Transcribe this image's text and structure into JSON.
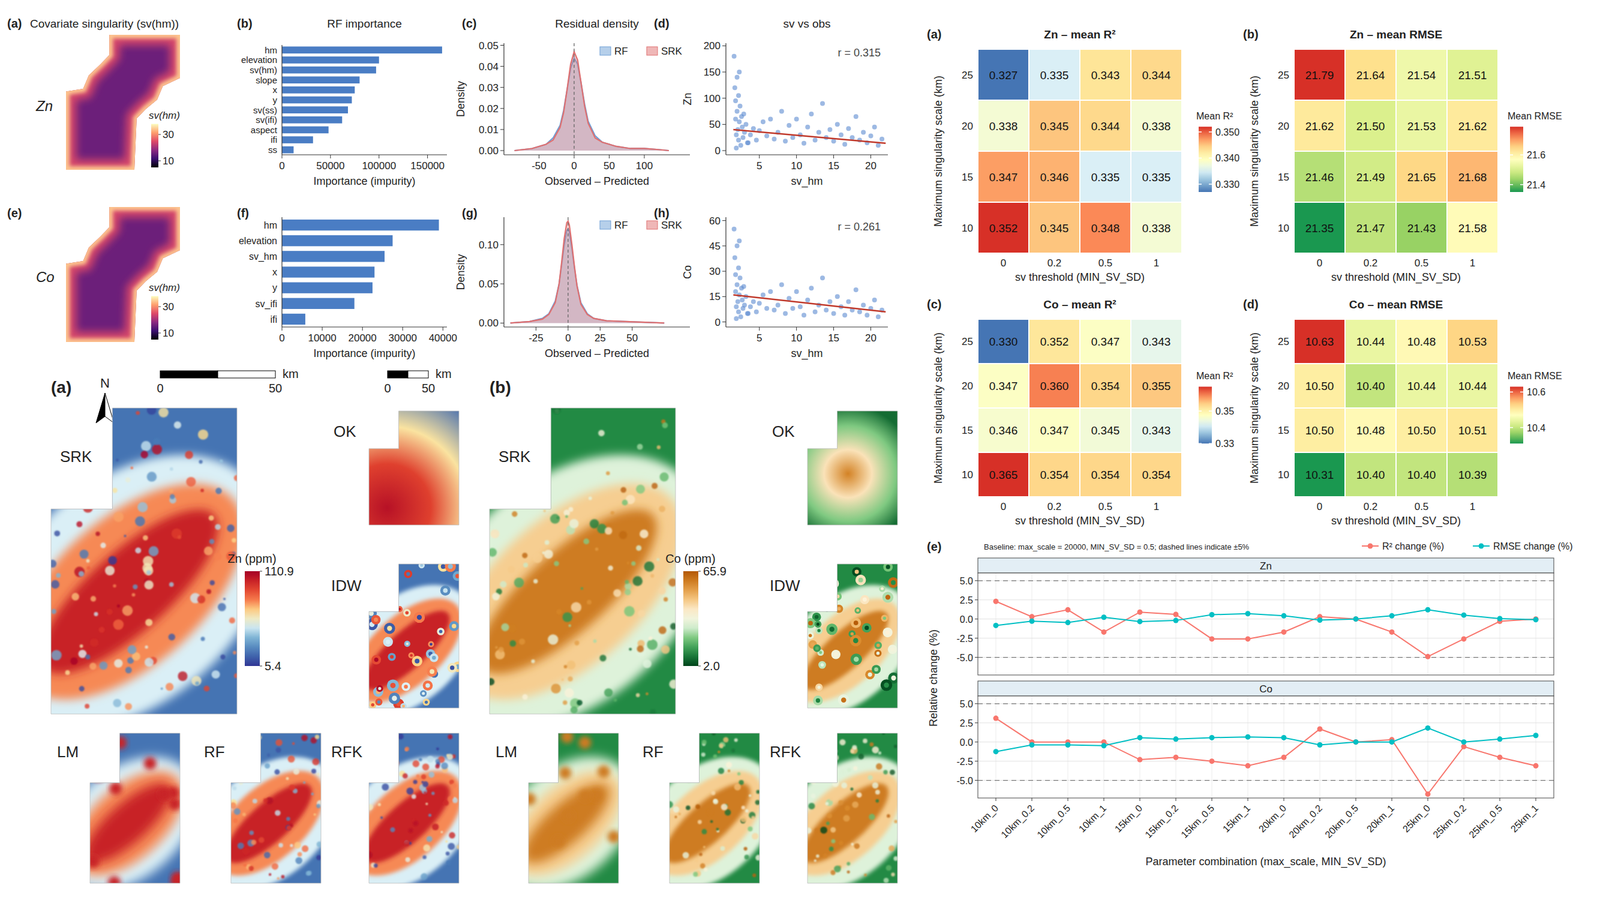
{
  "chart_data": [
    {
      "type": "map",
      "panel": "(a)",
      "title": "Covariate singularity (sv(hm))",
      "row_label": "Zn",
      "colorbar": {
        "title": "sv(hm)",
        "range": [
          5,
          38
        ],
        "ticks": [
          10,
          30
        ]
      }
    },
    {
      "type": "bar",
      "orientation": "horizontal",
      "panel": "(b)",
      "title": "RF importance",
      "categories": [
        "hm",
        "elevation",
        "sv(hm)",
        "slope",
        "x",
        "y",
        "sv(ss)",
        "sv(ifi)",
        "aspect",
        "ifi",
        "ss"
      ],
      "values": [
        165000,
        100000,
        97000,
        80000,
        75000,
        72000,
        68000,
        62000,
        48000,
        32000,
        12000
      ],
      "color": "#4a7dc4",
      "xlabel": "Importance (impurity)",
      "xlim": [
        0,
        170000
      ],
      "xticks": [
        0,
        50000,
        100000,
        150000
      ]
    },
    {
      "type": "line",
      "panel": "(c)",
      "title": "Residual density",
      "x": [
        -85,
        -60,
        -40,
        -30,
        -20,
        -15,
        -10,
        -5,
        0,
        5,
        10,
        15,
        20,
        30,
        40,
        60,
        80,
        100,
        120,
        135
      ],
      "series": [
        {
          "name": "RF",
          "color": "#6e9fd6",
          "values": [
            0,
            0.001,
            0.003,
            0.006,
            0.012,
            0.019,
            0.029,
            0.039,
            0.044,
            0.041,
            0.032,
            0.022,
            0.014,
            0.007,
            0.004,
            0.002,
            0.001,
            0.001,
            0.0005,
            0
          ]
        },
        {
          "name": "SRK",
          "color": "#e07070",
          "values": [
            0,
            0.001,
            0.003,
            0.005,
            0.011,
            0.018,
            0.029,
            0.041,
            0.047,
            0.043,
            0.032,
            0.021,
            0.013,
            0.006,
            0.004,
            0.002,
            0.001,
            0.001,
            0.0005,
            0
          ]
        }
      ],
      "xlabel": "Observed – Predicted",
      "ylabel": "Density",
      "xlim": [
        -100,
        165
      ],
      "ylim": [
        -0.002,
        0.051
      ],
      "xticks": [
        -50,
        0,
        50,
        100
      ],
      "yticks": [
        {
          "value": 0,
          "label": "0.00"
        },
        0.01,
        0.02,
        0.03,
        0.04,
        0.05
      ],
      "legend": "top-right",
      "ref_x": 0
    },
    {
      "type": "scatter",
      "panel": "(d)",
      "title": "sv vs obs",
      "x": [
        1.6,
        1.7,
        1.8,
        1.8,
        1.9,
        2.0,
        2.0,
        2.1,
        2.2,
        2.2,
        2.3,
        2.4,
        2.5,
        2.6,
        2.7,
        2.8,
        3.0,
        3.2,
        3.5,
        3.8,
        4.2,
        4.6,
        5.0,
        5.5,
        6.0,
        6.5,
        7.0,
        7.5,
        8.0,
        8.5,
        9.0,
        9.5,
        10.0,
        10.5,
        11.0,
        11.5,
        12.0,
        12.5,
        13.0,
        13.5,
        14.0,
        14.5,
        15.0,
        15.5,
        16.0,
        16.5,
        17.0,
        17.5,
        18.0,
        18.5,
        19.0,
        19.5,
        20.0,
        20.5,
        21.0,
        21.5,
        1.9,
        2.3,
        2.9,
        3.4
      ],
      "y": [
        180,
        120,
        95,
        60,
        30,
        140,
        75,
        40,
        20,
        105,
        55,
        85,
        10,
        65,
        45,
        25,
        35,
        50,
        15,
        30,
        42,
        20,
        38,
        55,
        28,
        60,
        22,
        35,
        75,
        18,
        48,
        25,
        60,
        30,
        14,
        45,
        70,
        20,
        35,
        90,
        25,
        40,
        18,
        50,
        30,
        12,
        42,
        25,
        65,
        20,
        35,
        15,
        28,
        45,
        10,
        22,
        5,
        150,
        70,
        15
      ],
      "color": "#5b8bd0",
      "fit": {
        "x": [
          1.5,
          22
        ],
        "y": [
          40,
          14
        ],
        "color": "#c0392b"
      },
      "annotation": "r = 0.315",
      "xlabel": "sv_hm",
      "ylabel": "Zn",
      "xlim": [
        0.5,
        22.3
      ],
      "ylim": [
        -8,
        205
      ],
      "xticks": [
        5,
        10,
        15,
        20
      ],
      "yticks": [
        0,
        50,
        100,
        150,
        200
      ]
    },
    {
      "type": "map",
      "panel": "(e)",
      "row_label": "Co",
      "colorbar": {
        "title": "sv(hm)",
        "range": [
          5,
          38
        ],
        "ticks": [
          10,
          30
        ]
      }
    },
    {
      "type": "bar",
      "orientation": "horizontal",
      "panel": "(f)",
      "categories": [
        "hm",
        "elevation",
        "sv_hm",
        "x",
        "y",
        "sv_ifi",
        "ifi"
      ],
      "values": [
        39000,
        27500,
        25500,
        23000,
        22500,
        18000,
        5800
      ],
      "color": "#4a7dc4",
      "xlabel": "Importance (impurity)",
      "xlim": [
        0,
        41000
      ],
      "xticks": [
        0,
        10000,
        20000,
        30000,
        40000
      ]
    },
    {
      "type": "line",
      "panel": "(g)",
      "x": [
        -45,
        -30,
        -20,
        -15,
        -10,
        -7,
        -5,
        -3,
        -1,
        0,
        1,
        3,
        5,
        7,
        10,
        15,
        20,
        30,
        45,
        60,
        75
      ],
      "series": [
        {
          "name": "RF",
          "color": "#6e9fd6",
          "values": [
            0,
            0.002,
            0.006,
            0.012,
            0.028,
            0.05,
            0.075,
            0.1,
            0.118,
            0.12,
            0.116,
            0.095,
            0.07,
            0.048,
            0.026,
            0.012,
            0.006,
            0.003,
            0.002,
            0.001,
            0
          ]
        },
        {
          "name": "SRK",
          "color": "#e07070",
          "values": [
            0,
            0.002,
            0.005,
            0.011,
            0.026,
            0.05,
            0.078,
            0.108,
            0.128,
            0.13,
            0.125,
            0.1,
            0.072,
            0.047,
            0.024,
            0.011,
            0.006,
            0.003,
            0.002,
            0.001,
            0
          ]
        }
      ],
      "xlabel": "Observed – Predicted",
      "ylabel": "Density",
      "xlim": [
        -50,
        95
      ],
      "ylim": [
        -0.005,
        0.135
      ],
      "xticks": [
        -25,
        0,
        25,
        50
      ],
      "yticks": [
        {
          "value": 0,
          "label": "0.00"
        },
        0.05,
        {
          "value": 0.1,
          "label": "0.10"
        }
      ],
      "legend": "top-right",
      "ref_x": 0
    },
    {
      "type": "scatter",
      "panel": "(h)",
      "x": [
        1.6,
        1.7,
        1.8,
        1.8,
        1.9,
        2.0,
        2.0,
        2.1,
        2.2,
        2.2,
        2.3,
        2.4,
        2.5,
        2.6,
        2.7,
        2.8,
        3.0,
        3.2,
        3.5,
        3.8,
        4.2,
        4.6,
        5.0,
        5.5,
        6.0,
        6.5,
        7.0,
        7.5,
        8.0,
        8.5,
        9.0,
        9.5,
        10.0,
        10.5,
        11.0,
        11.5,
        12.0,
        12.5,
        13.0,
        13.5,
        14.0,
        14.5,
        15.0,
        15.5,
        16.0,
        16.5,
        17.0,
        17.5,
        18.0,
        18.5,
        19.0,
        19.5,
        20.0,
        20.5,
        21.0,
        21.5,
        1.9,
        2.3,
        2.9,
        3.4
      ],
      "y": [
        55,
        38,
        28,
        18,
        9,
        45,
        22,
        12,
        6,
        32,
        16,
        26,
        3,
        20,
        13,
        8,
        10,
        15,
        5,
        9,
        12,
        6,
        11,
        16,
        8,
        18,
        7,
        10,
        22,
        5,
        14,
        8,
        18,
        9,
        4,
        13,
        20,
        6,
        10,
        26,
        7,
        12,
        5,
        15,
        9,
        4,
        12,
        7,
        19,
        6,
        10,
        4,
        8,
        13,
        3,
        7,
        2,
        48,
        21,
        5
      ],
      "color": "#5b8bd0",
      "fit": {
        "x": [
          1.5,
          22
        ],
        "y": [
          16,
          6
        ],
        "color": "#c0392b"
      },
      "annotation": "r = 0.261",
      "xlabel": "sv_hm",
      "ylabel": "Co",
      "xlim": [
        0.5,
        22.3
      ],
      "ylim": [
        -3,
        62
      ],
      "xticks": [
        5,
        10,
        15,
        20
      ],
      "yticks": [
        0,
        15,
        30,
        45,
        60
      ]
    },
    {
      "type": "map",
      "panel": "(a)",
      "maps": [
        "SRK",
        "OK",
        "IDW",
        "LM",
        "RF",
        "RFK"
      ],
      "colorbar": {
        "title": "Zn (ppm)",
        "range": [
          5.4,
          110.9
        ],
        "ticks": [
          5.4,
          110.9
        ]
      },
      "north": "N",
      "scale_bar": {
        "ticks": [
          0,
          50
        ],
        "unit": "km"
      },
      "inset_scale_bar": {
        "ticks": [
          0,
          50
        ],
        "unit": "km"
      }
    },
    {
      "type": "map",
      "panel": "(b)",
      "maps": [
        "SRK",
        "OK",
        "IDW",
        "LM",
        "RF",
        "RFK"
      ],
      "colorbar": {
        "title": "Co (ppm)",
        "range": [
          2,
          65.9
        ],
        "ticks": [
          {
            "value": 2,
            "label": "2.0"
          },
          65.9
        ]
      }
    },
    {
      "type": "heatmap",
      "panel": "(a)",
      "title": "Zn – mean R²",
      "x": [
        "0",
        "0.2",
        "0.5",
        "1"
      ],
      "y": [
        "25",
        "20",
        "15",
        "10"
      ],
      "z": [
        [
          0.327,
          0.335,
          0.343,
          0.344
        ],
        [
          0.338,
          0.345,
          0.344,
          0.338
        ],
        [
          0.347,
          0.346,
          0.335,
          0.335
        ],
        [
          0.352,
          0.345,
          0.348,
          0.338
        ]
      ],
      "value_labels": [
        [
          "0.327",
          "0.335",
          "0.343",
          "0.344"
        ],
        [
          "0.338",
          "0.345",
          "0.344",
          "0.338"
        ],
        [
          "0.347",
          "0.346",
          "0.335",
          "0.335"
        ],
        [
          "0.352",
          "0.345",
          "0.348",
          "0.338"
        ]
      ],
      "data_labels": true,
      "xlabel": "sv threshold (MIN_SV_SD)",
      "ylabel": "Maximum singularity scale (km)",
      "colorbar": {
        "title": "Mean R²",
        "range": [
          0.327,
          0.352
        ],
        "ticks": [
          {
            "value": 0.33,
            "label": "0.330"
          },
          {
            "value": 0.34,
            "label": "0.340"
          },
          {
            "value": 0.35,
            "label": "0.350"
          }
        ]
      }
    },
    {
      "type": "heatmap",
      "panel": "(b)",
      "title": "Zn – mean RMSE",
      "x": [
        "0",
        "0.2",
        "0.5",
        "1"
      ],
      "y": [
        "25",
        "20",
        "15",
        "10"
      ],
      "z": [
        [
          21.79,
          21.64,
          21.54,
          21.51
        ],
        [
          21.62,
          21.5,
          21.53,
          21.62
        ],
        [
          21.46,
          21.49,
          21.65,
          21.68
        ],
        [
          21.35,
          21.47,
          21.43,
          21.58
        ]
      ],
      "value_labels": [
        [
          "21.79",
          "21.64",
          "21.54",
          "21.51"
        ],
        [
          "21.62",
          "21.50",
          "21.53",
          "21.62"
        ],
        [
          "21.46",
          "21.49",
          "21.65",
          "21.68"
        ],
        [
          "21.35",
          "21.47",
          "21.43",
          "21.58"
        ]
      ],
      "data_labels": true,
      "xlabel": "sv threshold (MIN_SV_SD)",
      "ylabel": "Maximum singularity scale (km)",
      "colorbar": {
        "title": "Mean RMSE",
        "range": [
          21.35,
          21.79
        ],
        "ticks": [
          21.4,
          21.6
        ]
      }
    },
    {
      "type": "heatmap",
      "panel": "(c)",
      "title": "Co – mean R²",
      "x": [
        "0",
        "0.2",
        "0.5",
        "1"
      ],
      "y": [
        "25",
        "20",
        "15",
        "10"
      ],
      "z": [
        [
          0.33,
          0.352,
          0.347,
          0.343
        ],
        [
          0.347,
          0.36,
          0.354,
          0.355
        ],
        [
          0.346,
          0.347,
          0.345,
          0.343
        ],
        [
          0.365,
          0.354,
          0.354,
          0.354
        ]
      ],
      "value_labels": [
        [
          "0.330",
          "0.352",
          "0.347",
          "0.343"
        ],
        [
          "0.347",
          "0.360",
          "0.354",
          "0.355"
        ],
        [
          "0.346",
          "0.347",
          "0.345",
          "0.343"
        ],
        [
          "0.365",
          "0.354",
          "0.354",
          "0.354"
        ]
      ],
      "data_labels": true,
      "xlabel": "sv threshold (MIN_SV_SD)",
      "ylabel": "Maximum singularity scale (km)",
      "colorbar": {
        "title": "Mean R²",
        "range": [
          0.33,
          0.365
        ],
        "ticks": [
          0.33,
          0.35
        ]
      }
    },
    {
      "type": "heatmap",
      "panel": "(d)",
      "title": "Co – mean RMSE",
      "x": [
        "0",
        "0.2",
        "0.5",
        "1"
      ],
      "y": [
        "25",
        "20",
        "15",
        "10"
      ],
      "z": [
        [
          10.63,
          10.44,
          10.48,
          10.53
        ],
        [
          10.5,
          10.4,
          10.44,
          10.44
        ],
        [
          10.5,
          10.48,
          10.5,
          10.51
        ],
        [
          10.31,
          10.4,
          10.4,
          10.39
        ]
      ],
      "value_labels": [
        [
          "10.63",
          "10.44",
          "10.48",
          "10.53"
        ],
        [
          "10.50",
          "10.40",
          "10.44",
          "10.44"
        ],
        [
          "10.50",
          "10.48",
          "10.50",
          "10.51"
        ],
        [
          "10.31",
          "10.40",
          "10.40",
          "10.39"
        ]
      ],
      "data_labels": true,
      "xlabel": "sv threshold (MIN_SV_SD)",
      "ylabel": "Maximum singularity scale (km)",
      "colorbar": {
        "title": "Mean RMSE",
        "range": [
          10.31,
          10.63
        ],
        "ticks": [
          10.4,
          10.6
        ]
      }
    },
    {
      "type": "line",
      "panel": "(e)",
      "subtitle": "Baseline: max_scale = 20000, MIN_SV_SD = 0.5; dashed lines indicate ±5%",
      "categories": [
        "10km_0",
        "10km_0.2",
        "10km_0.5",
        "10km_1",
        "15km_0",
        "15km_0.2",
        "15km_0.5",
        "15km_1",
        "20km_0",
        "20km_0.2",
        "20km_0.5",
        "20km_1",
        "25km_0",
        "25km_0.2",
        "25km_0.5",
        "25km_1"
      ],
      "series": [
        {
          "name": "R² change (%)",
          "color": "#F8766D"
        },
        {
          "name": "RMSE change (%)",
          "color": "#00BFC4"
        }
      ],
      "facets": [
        {
          "title": "Zn",
          "series": [
            {
              "values": [
                2.3,
                0.3,
                1.2,
                -1.7,
                0.9,
                0.6,
                -2.6,
                -2.6,
                -1.7,
                0.3,
                0.0,
                -1.7,
                -4.9,
                -2.6,
                -0.3,
                0.0
              ]
            },
            {
              "values": [
                -0.84,
                -0.28,
                -0.46,
                0.23,
                -0.33,
                -0.19,
                0.56,
                0.7,
                0.42,
                -0.14,
                0.0,
                0.42,
                1.21,
                0.51,
                0.05,
                -0.09
              ]
            }
          ]
        },
        {
          "title": "Co",
          "series": [
            {
              "values": [
                3.1,
                0.0,
                0.0,
                0.0,
                -2.3,
                -2.0,
                -2.5,
                -3.1,
                -2.0,
                1.7,
                0.0,
                0.3,
                -6.8,
                -0.6,
                -2.0,
                -3.1
              ]
            },
            {
              "values": [
                -1.25,
                -0.38,
                -0.38,
                -0.48,
                0.57,
                0.38,
                0.57,
                0.67,
                0.57,
                -0.38,
                0.0,
                0.0,
                1.82,
                0.0,
                0.38,
                0.86
              ]
            }
          ]
        }
      ],
      "xlabel": "Parameter combination (max_scale, MIN_SV_SD)",
      "ylabel": "Relative change (%)",
      "ylim": [
        -7.3,
        6
      ],
      "yticks": [
        {
          "value": -5,
          "label": "-5.0"
        },
        -2.5,
        {
          "value": 0,
          "label": "0.0"
        },
        2.5,
        {
          "value": 5,
          "label": "5.0"
        }
      ],
      "ref_y": [
        -5,
        5
      ],
      "legend": "top-right",
      "marker": "circle",
      "grid": true
    }
  ]
}
